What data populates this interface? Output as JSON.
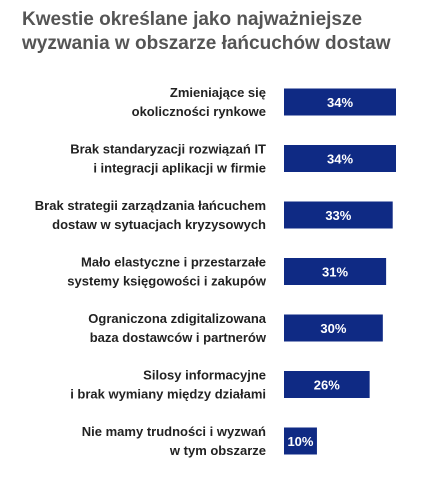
{
  "chart_data": {
    "type": "bar",
    "orientation": "horizontal",
    "title_lines": [
      "Kwestie określane jako najważniejsze",
      "wyzwania w obszarze łańcuchów dostaw"
    ],
    "categories": [
      [
        "Zmieniające się",
        "okoliczności rynkowe"
      ],
      [
        "Brak standaryzacji rozwiązań IT",
        "i integracji aplikacji w firmie"
      ],
      [
        "Brak strategii zarządzania łańcuchem",
        "dostaw w sytuacjach kryzysowych"
      ],
      [
        "Mało elastyczne i przestarzałe",
        "systemy księgowości i zakupów"
      ],
      [
        "Ograniczona zdigitalizowana",
        "baza dostawców i partnerów"
      ],
      [
        "Silosy informacyjne",
        "i brak wymiany między działami"
      ],
      [
        "Nie mamy trudności i wyzwań",
        "w tym obszarze"
      ]
    ],
    "values": [
      34,
      34,
      33,
      31,
      30,
      26,
      10
    ],
    "value_labels": [
      "34%",
      "34%",
      "33%",
      "31%",
      "30%",
      "26%",
      "10%"
    ],
    "unit": "%",
    "xlim": [
      0,
      34
    ],
    "grid": false,
    "legend": "none",
    "bar_color": "#0f2a84",
    "value_label_color": "#ffffff"
  }
}
